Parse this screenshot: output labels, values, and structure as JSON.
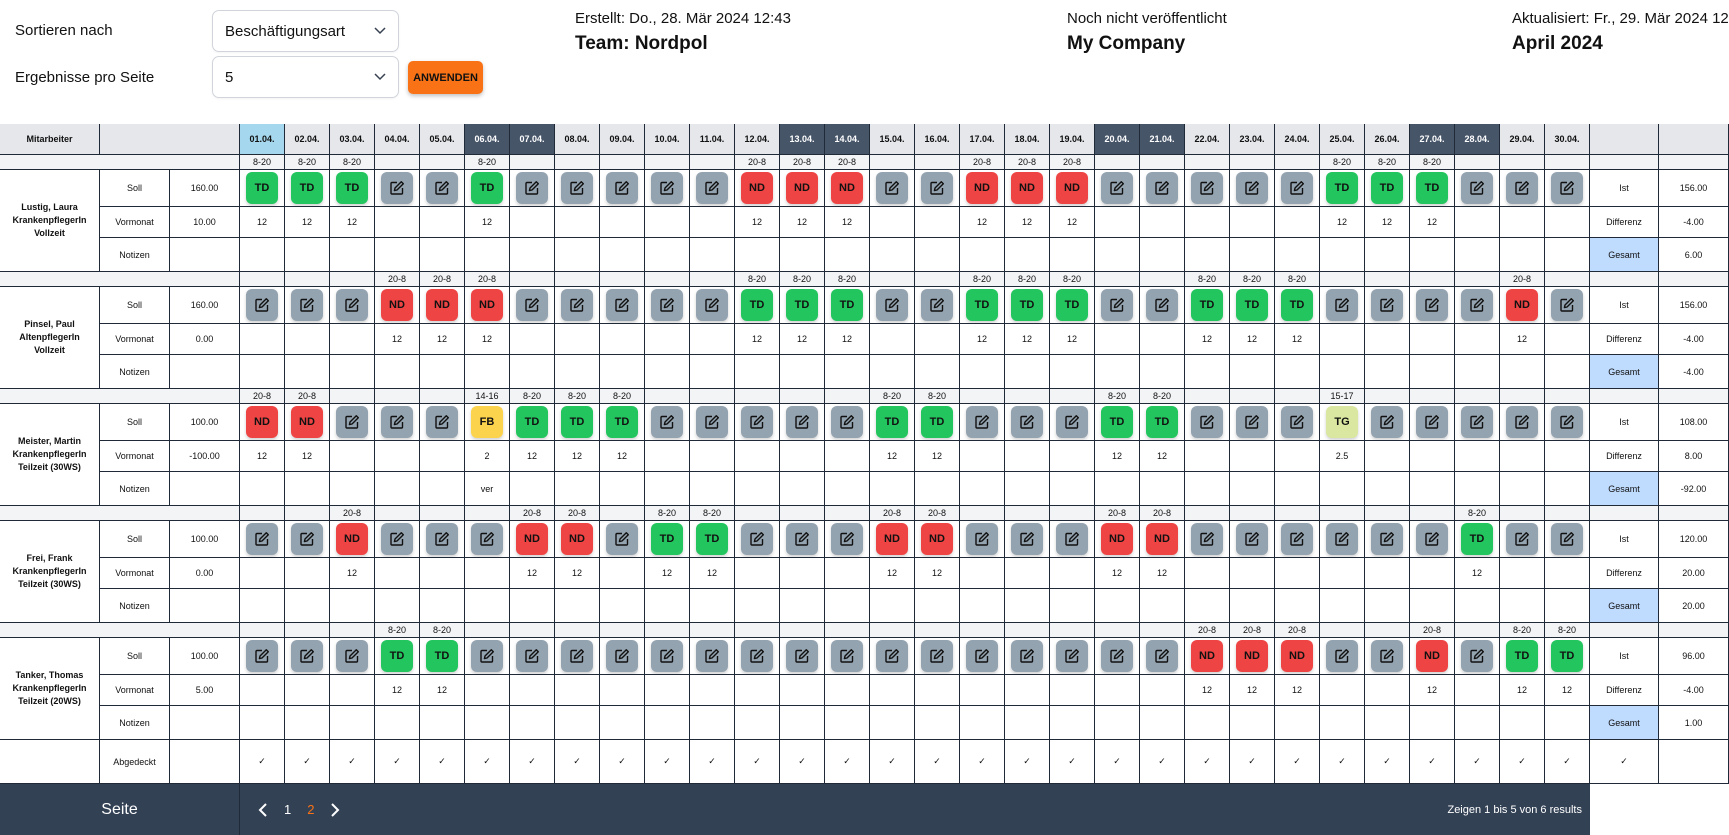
{
  "controls": {
    "sort_label": "Sortieren nach",
    "sort_value": "Beschäftigungsart",
    "per_page_label": "Ergebnisse pro Seite",
    "per_page_value": "5",
    "apply_label": "ANWENDEN"
  },
  "meta": {
    "created": "Erstellt: Do., 28. Mär 2024 12:43",
    "team": "Team: Nordpol",
    "status": "Noch nicht veröffentlicht",
    "company": "My Company",
    "updated": "Aktualisiert: Fr., 29. Mär 2024 12:43",
    "month": "April 2024"
  },
  "table": {
    "header": "Mitarbeiter",
    "days": [
      "01.04.",
      "02.04.",
      "03.04.",
      "04.04.",
      "05.04.",
      "06.04.",
      "07.04.",
      "08.04.",
      "09.04.",
      "10.04.",
      "11.04.",
      "12.04.",
      "13.04.",
      "14.04.",
      "15.04.",
      "16.04.",
      "17.04.",
      "18.04.",
      "19.04.",
      "20.04.",
      "21.04.",
      "22.04.",
      "23.04.",
      "24.04.",
      "25.04.",
      "26.04.",
      "27.04.",
      "28.04.",
      "29.04.",
      "30.04."
    ],
    "today_index": 0,
    "weekend_indexes": [
      5,
      6,
      12,
      13,
      19,
      20,
      26,
      27
    ],
    "row_labels": {
      "soll": "Soll",
      "vormonat": "Vormonat",
      "notizen": "Notizen",
      "ist": "Ist",
      "differenz": "Differenz",
      "gesamt": "Gesamt"
    },
    "employees": [
      {
        "name": "Lustig, Laura",
        "role": "KrankenpflegerIn",
        "contract": "Vollzeit",
        "soll": "160.00",
        "vormonat": "10.00",
        "ist": "156.00",
        "differenz": "-4.00",
        "gesamt": "6.00",
        "shifts": [
          "TD",
          "TD",
          "TD",
          "E",
          "E",
          "TD",
          "E",
          "E",
          "E",
          "E",
          "E",
          "ND",
          "ND",
          "ND",
          "E",
          "E",
          "ND",
          "ND",
          "ND",
          "E",
          "E",
          "E",
          "E",
          "E",
          "TD",
          "TD",
          "TD",
          "E",
          "E",
          "E"
        ],
        "times": [
          "8-20",
          "8-20",
          "8-20",
          "",
          "",
          "8-20",
          "",
          "",
          "",
          "",
          "",
          "20-8",
          "20-8",
          "20-8",
          "",
          "",
          "20-8",
          "20-8",
          "20-8",
          "",
          "",
          "",
          "",
          "",
          "8-20",
          "8-20",
          "8-20",
          "",
          "",
          ""
        ],
        "hours": [
          "12",
          "12",
          "12",
          "",
          "",
          "12",
          "",
          "",
          "",
          "",
          "",
          "12",
          "12",
          "12",
          "",
          "",
          "12",
          "12",
          "12",
          "",
          "",
          "",
          "",
          "",
          "12",
          "12",
          "12",
          "",
          "",
          ""
        ],
        "notes": [
          "",
          "",
          "",
          "",
          "",
          "",
          "",
          "",
          "",
          "",
          "",
          "",
          "",
          "",
          "",
          "",
          "",
          "",
          "",
          "",
          "",
          "",
          "",
          "",
          "",
          "",
          "",
          "",
          "",
          ""
        ]
      },
      {
        "name": "Pinsel, Paul",
        "role": "AltenpflegerIn",
        "contract": "Vollzeit",
        "soll": "160.00",
        "vormonat": "0.00",
        "ist": "156.00",
        "differenz": "-4.00",
        "gesamt": "-4.00",
        "shifts": [
          "E",
          "E",
          "E",
          "ND",
          "ND",
          "ND",
          "E",
          "E",
          "E",
          "E",
          "E",
          "TD",
          "TD",
          "TD",
          "E",
          "E",
          "TD",
          "TD",
          "TD",
          "E",
          "E",
          "TD",
          "TD",
          "TD",
          "E",
          "E",
          "E",
          "E",
          "ND",
          "E"
        ],
        "times": [
          "",
          "",
          "",
          "20-8",
          "20-8",
          "20-8",
          "",
          "",
          "",
          "",
          "",
          "8-20",
          "8-20",
          "8-20",
          "",
          "",
          "8-20",
          "8-20",
          "8-20",
          "",
          "",
          "8-20",
          "8-20",
          "8-20",
          "",
          "",
          "",
          "",
          "20-8",
          ""
        ],
        "hours": [
          "",
          "",
          "",
          "12",
          "12",
          "12",
          "",
          "",
          "",
          "",
          "",
          "12",
          "12",
          "12",
          "",
          "",
          "12",
          "12",
          "12",
          "",
          "",
          "12",
          "12",
          "12",
          "",
          "",
          "",
          "",
          "12",
          ""
        ],
        "notes": [
          "",
          "",
          "",
          "",
          "",
          "",
          "",
          "",
          "",
          "",
          "",
          "",
          "",
          "",
          "",
          "",
          "",
          "",
          "",
          "",
          "",
          "",
          "",
          "",
          "",
          "",
          "",
          "",
          "",
          ""
        ]
      },
      {
        "name": "Meister, Martin",
        "role": "KrankenpflegerIn",
        "contract": "Teilzeit (30WS)",
        "soll": "100.00",
        "vormonat": "-100.00",
        "ist": "108.00",
        "differenz": "8.00",
        "gesamt": "-92.00",
        "shifts": [
          "ND",
          "ND",
          "E",
          "E",
          "E",
          "FB",
          "TD",
          "TD",
          "TD",
          "E",
          "E",
          "E",
          "E",
          "E",
          "TD",
          "TD",
          "E",
          "E",
          "E",
          "TD",
          "TD",
          "E",
          "E",
          "E",
          "TG",
          "E",
          "E",
          "E",
          "E",
          "E"
        ],
        "times": [
          "20-8",
          "20-8",
          "",
          "",
          "",
          "14-16",
          "8-20",
          "8-20",
          "8-20",
          "",
          "",
          "",
          "",
          "",
          "8-20",
          "8-20",
          "",
          "",
          "",
          "8-20",
          "8-20",
          "",
          "",
          "",
          "15-17",
          "",
          "",
          "",
          "",
          ""
        ],
        "hours": [
          "12",
          "12",
          "",
          "",
          "",
          "2",
          "12",
          "12",
          "12",
          "",
          "",
          "",
          "",
          "",
          "12",
          "12",
          "",
          "",
          "",
          "12",
          "12",
          "",
          "",
          "",
          "2.5",
          "",
          "",
          "",
          "",
          ""
        ],
        "notes": [
          "",
          "",
          "",
          "",
          "",
          "ver",
          "",
          "",
          "",
          "",
          "",
          "",
          "",
          "",
          "",
          "",
          "",
          "",
          "",
          "",
          "",
          "",
          "",
          "",
          "",
          "",
          "",
          "",
          "",
          ""
        ]
      },
      {
        "name": "Frei, Frank",
        "role": "KrankenpflegerIn",
        "contract": "Teilzeit (30WS)",
        "soll": "100.00",
        "vormonat": "0.00",
        "ist": "120.00",
        "differenz": "20.00",
        "gesamt": "20.00",
        "shifts": [
          "E",
          "E",
          "ND",
          "E",
          "E",
          "E",
          "ND",
          "ND",
          "E",
          "TD",
          "TD",
          "E",
          "E",
          "E",
          "ND",
          "ND",
          "E",
          "E",
          "E",
          "ND",
          "ND",
          "E",
          "E",
          "E",
          "E",
          "E",
          "E",
          "TD",
          "E",
          "E"
        ],
        "times": [
          "",
          "",
          "20-8",
          "",
          "",
          "",
          "20-8",
          "20-8",
          "",
          "8-20",
          "8-20",
          "",
          "",
          "",
          "20-8",
          "20-8",
          "",
          "",
          "",
          "20-8",
          "20-8",
          "",
          "",
          "",
          "",
          "",
          "",
          "8-20",
          "",
          ""
        ],
        "hours": [
          "",
          "",
          "12",
          "",
          "",
          "",
          "12",
          "12",
          "",
          "12",
          "12",
          "",
          "",
          "",
          "12",
          "12",
          "",
          "",
          "",
          "12",
          "12",
          "",
          "",
          "",
          "",
          "",
          "",
          "12",
          "",
          ""
        ],
        "notes": [
          "",
          "",
          "",
          "",
          "",
          "",
          "",
          "",
          "",
          "",
          "",
          "",
          "",
          "",
          "",
          "",
          "",
          "",
          "",
          "",
          "",
          "",
          "",
          "",
          "",
          "",
          "",
          "",
          "",
          ""
        ]
      },
      {
        "name": "Tanker, Thomas",
        "role": "KrankenpflegerIn",
        "contract": "Teilzeit (20WS)",
        "soll": "100.00",
        "vormonat": "5.00",
        "ist": "96.00",
        "differenz": "-4.00",
        "gesamt": "1.00",
        "shifts": [
          "E",
          "E",
          "E",
          "TD",
          "TD",
          "E",
          "E",
          "E",
          "E",
          "E",
          "E",
          "E",
          "E",
          "E",
          "E",
          "E",
          "E",
          "E",
          "E",
          "E",
          "E",
          "ND",
          "ND",
          "ND",
          "E",
          "E",
          "ND",
          "E",
          "TD",
          "TD"
        ],
        "times": [
          "",
          "",
          "",
          "8-20",
          "8-20",
          "",
          "",
          "",
          "",
          "",
          "",
          "",
          "",
          "",
          "",
          "",
          "",
          "",
          "",
          "",
          "",
          "20-8",
          "20-8",
          "20-8",
          "",
          "",
          "20-8",
          "",
          "8-20",
          "8-20"
        ],
        "hours": [
          "",
          "",
          "",
          "12",
          "12",
          "",
          "",
          "",
          "",
          "",
          "",
          "",
          "",
          "",
          "",
          "",
          "",
          "",
          "",
          "",
          "",
          "12",
          "12",
          "12",
          "",
          "",
          "12",
          "",
          "12",
          "12"
        ],
        "notes": [
          "",
          "",
          "",
          "",
          "",
          "",
          "",
          "",
          "",
          "",
          "",
          "",
          "",
          "",
          "",
          "",
          "",
          "",
          "",
          "",
          "",
          "",
          "",
          "",
          "",
          "",
          "",
          "",
          "",
          ""
        ]
      }
    ],
    "covered_label": "Abgedeckt",
    "check": "✓"
  },
  "colors": {
    "TD": "#22c55e",
    "ND": "#ef4444",
    "FB": "#fcd34d",
    "TG": "#d9e7a0",
    "E": "#94a3b0",
    "today": "#a5d8ee",
    "weekend": "#475569",
    "gesamt": "#bfdbfe"
  },
  "footer": {
    "label": "Seite",
    "pages": [
      "1",
      "2"
    ],
    "current_page": "2",
    "results": "Zeigen 1 bis 5 von 6 results"
  }
}
